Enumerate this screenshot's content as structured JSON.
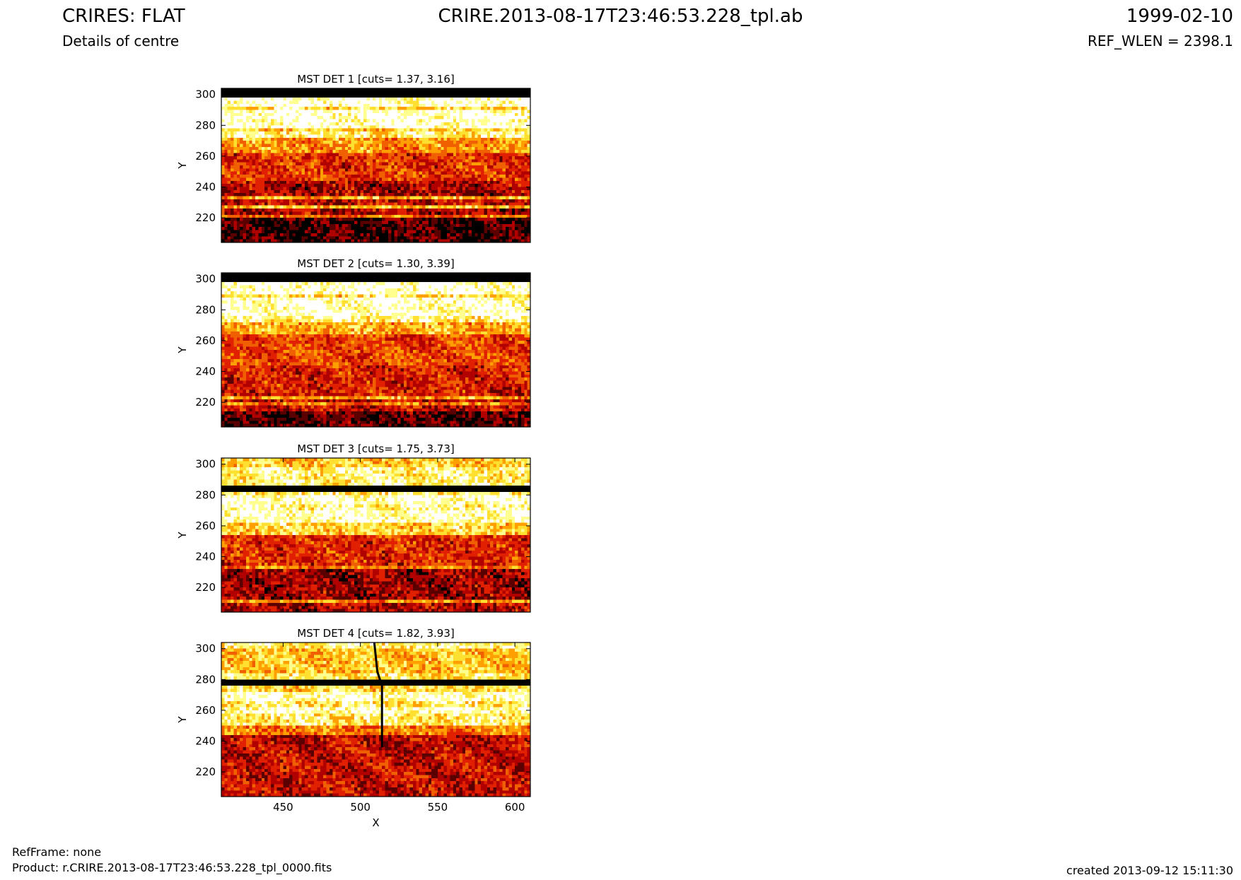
{
  "header": {
    "title": "CRIRES: FLAT",
    "subtitle": "Details of centre",
    "filename": "CRIRE.2013-08-17T23:46:53.228_tpl.ab",
    "date": "1999-02-10",
    "ref_wlen": "REF_WLEN = 2398.1"
  },
  "footer": {
    "refframe": "RefFrame: none",
    "product": "Product: r.CRIRE.2013-08-17T23:46:53.228_tpl_0000.fits",
    "created": "created 2013-09-12 15:11:30"
  },
  "colors": {
    "colormap": [
      "#000000",
      "#5a0000",
      "#b00000",
      "#e02000",
      "#f06000",
      "#ffa000",
      "#ffe030",
      "#ffff90",
      "#ffffff"
    ]
  },
  "chart_data": [
    {
      "type": "heatmap",
      "title": "MST DET 1 [cuts= 1.37, 3.16]",
      "xlabel": "",
      "ylabel": "Y",
      "xlim": [
        410,
        610
      ],
      "ylim": [
        204,
        304
      ],
      "xticks": [
        450,
        500,
        550,
        600
      ],
      "yticks": [
        220,
        240,
        260,
        280,
        300
      ],
      "row_profile": [
        {
          "y": [
            204,
            220
          ],
          "level": 0.08
        },
        {
          "y": [
            220,
            222
          ],
          "level": 0.55
        },
        {
          "y": [
            222,
            226
          ],
          "level": 0.25
        },
        {
          "y": [
            226,
            228
          ],
          "level": 0.7
        },
        {
          "y": [
            228,
            232
          ],
          "level": 0.3
        },
        {
          "y": [
            232,
            234
          ],
          "level": 0.65
        },
        {
          "y": [
            234,
            244
          ],
          "level": 0.25
        },
        {
          "y": [
            244,
            262
          ],
          "level": 0.4
        },
        {
          "y": [
            262,
            272
          ],
          "level": 0.6
        },
        {
          "y": [
            272,
            276
          ],
          "level": 0.85
        },
        {
          "y": [
            276,
            278
          ],
          "level": 0.72
        },
        {
          "y": [
            278,
            291
          ],
          "level": 0.98
        },
        {
          "y": [
            291,
            293
          ],
          "level": 0.78
        },
        {
          "y": [
            293,
            298
          ],
          "level": 0.98
        },
        {
          "y": [
            298,
            304
          ],
          "level": 0.0
        }
      ]
    },
    {
      "type": "heatmap",
      "title": "MST DET 2 [cuts= 1.30, 3.39]",
      "xlabel": "",
      "ylabel": "Y",
      "xlim": [
        410,
        610
      ],
      "ylim": [
        204,
        304
      ],
      "xticks": [
        450,
        500,
        550,
        600
      ],
      "yticks": [
        220,
        240,
        260,
        280,
        300
      ],
      "row_profile": [
        {
          "y": [
            204,
            214
          ],
          "level": 0.1
        },
        {
          "y": [
            214,
            218
          ],
          "level": 0.3
        },
        {
          "y": [
            218,
            220
          ],
          "level": 0.55
        },
        {
          "y": [
            220,
            222
          ],
          "level": 0.3
        },
        {
          "y": [
            222,
            224
          ],
          "level": 0.65
        },
        {
          "y": [
            224,
            244
          ],
          "level": 0.35
        },
        {
          "y": [
            244,
            264
          ],
          "level": 0.45
        },
        {
          "y": [
            264,
            272
          ],
          "level": 0.65
        },
        {
          "y": [
            272,
            276
          ],
          "level": 0.85
        },
        {
          "y": [
            276,
            288
          ],
          "level": 0.97
        },
        {
          "y": [
            288,
            290
          ],
          "level": 0.78
        },
        {
          "y": [
            290,
            298
          ],
          "level": 0.98
        },
        {
          "y": [
            298,
            304
          ],
          "level": 0.0
        }
      ]
    },
    {
      "type": "heatmap",
      "title": "MST DET 3 [cuts= 1.75, 3.73]",
      "xlabel": "",
      "ylabel": "Y",
      "xlim": [
        410,
        610
      ],
      "ylim": [
        204,
        304
      ],
      "xticks": [
        450,
        500,
        550,
        600
      ],
      "yticks": [
        220,
        240,
        260,
        280,
        300
      ],
      "row_profile": [
        {
          "y": [
            204,
            210
          ],
          "level": 0.25
        },
        {
          "y": [
            210,
            212
          ],
          "level": 0.6
        },
        {
          "y": [
            212,
            232
          ],
          "level": 0.22
        },
        {
          "y": [
            232,
            234
          ],
          "level": 0.55
        },
        {
          "y": [
            234,
            254
          ],
          "level": 0.38
        },
        {
          "y": [
            254,
            262
          ],
          "level": 0.75
        },
        {
          "y": [
            262,
            270
          ],
          "level": 0.95
        },
        {
          "y": [
            270,
            274
          ],
          "level": 0.88
        },
        {
          "y": [
            274,
            280
          ],
          "level": 0.96
        },
        {
          "y": [
            280,
            282
          ],
          "level": 0.8
        },
        {
          "y": [
            282,
            286
          ],
          "level": 0.0
        },
        {
          "y": [
            286,
            298
          ],
          "level": 0.85
        },
        {
          "y": [
            298,
            304
          ],
          "level": 0.72
        }
      ]
    },
    {
      "type": "heatmap",
      "title": "MST DET 4 [cuts= 1.82, 3.93]",
      "xlabel": "X",
      "ylabel": "Y",
      "xlim": [
        410,
        610
      ],
      "ylim": [
        204,
        304
      ],
      "xticks": [
        450,
        500,
        550,
        600
      ],
      "yticks": [
        220,
        240,
        260,
        280,
        300
      ],
      "row_profile": [
        {
          "y": [
            204,
            244
          ],
          "level": 0.3
        },
        {
          "y": [
            244,
            250
          ],
          "level": 0.55
        },
        {
          "y": [
            250,
            258
          ],
          "level": 0.82
        },
        {
          "y": [
            258,
            262
          ],
          "level": 0.95
        },
        {
          "y": [
            262,
            266
          ],
          "level": 0.82
        },
        {
          "y": [
            266,
            272
          ],
          "level": 0.95
        },
        {
          "y": [
            272,
            276
          ],
          "level": 0.75
        },
        {
          "y": [
            276,
            280
          ],
          "level": 0.0
        },
        {
          "y": [
            280,
            284
          ],
          "level": 0.8
        },
        {
          "y": [
            284,
            300
          ],
          "level": 0.7
        },
        {
          "y": [
            300,
            304
          ],
          "level": 0.85
        }
      ],
      "feature_line": [
        [
          509,
          304
        ],
        [
          511,
          285
        ],
        [
          514,
          276
        ],
        [
          514,
          236
        ]
      ]
    }
  ]
}
